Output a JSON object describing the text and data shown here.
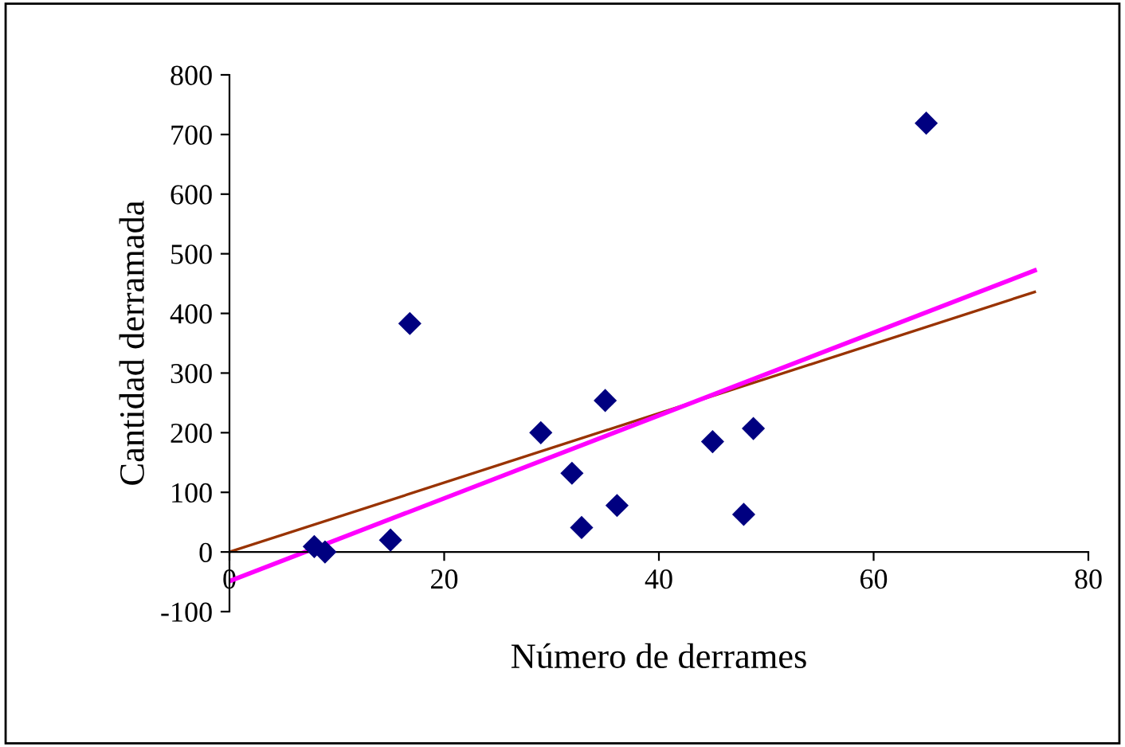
{
  "chart_data": {
    "type": "scatter",
    "xlabel": "Número de derrames",
    "ylabel": "Cantidad derramada",
    "xlim": [
      0,
      80
    ],
    "xticks": [
      0,
      20,
      40,
      60,
      80
    ],
    "ylim": [
      -100,
      800
    ],
    "yticks": [
      -100,
      0,
      100,
      200,
      300,
      400,
      500,
      600,
      700,
      800
    ],
    "grid": false,
    "legend": false,
    "series": [
      {
        "marker": "diamond",
        "color": "#000080",
        "x": [
          7.9,
          8.9,
          15,
          16.8,
          29,
          31.9,
          32.8,
          35,
          36.1,
          45,
          47.9,
          48.8,
          64.9
        ],
        "values": [
          9,
          0,
          20,
          383,
          200,
          132,
          41,
          254,
          78,
          185,
          63,
          207,
          719
        ]
      },
      {
        "type": "line",
        "color": "#993300",
        "x": [
          0,
          75
        ],
        "values": [
          0,
          436
        ]
      },
      {
        "type": "line",
        "color": "#ff00ff",
        "x": [
          0,
          75
        ],
        "values": [
          -49,
          472
        ]
      }
    ]
  }
}
